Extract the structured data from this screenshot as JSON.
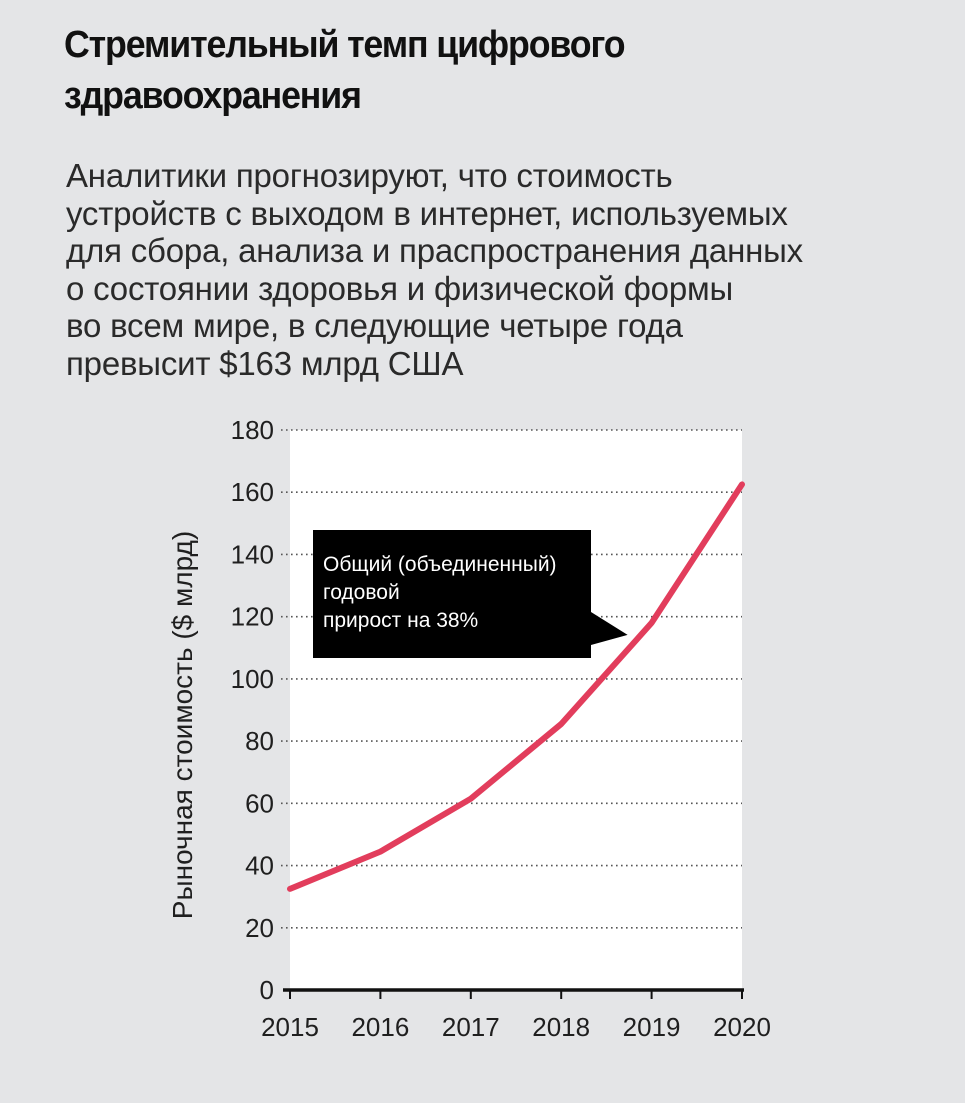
{
  "header": {
    "title_line1": "Стремительный темп цифрового",
    "title_line2": "здравоохранения",
    "subtitle_lines": [
      "Аналитики прогнозируют, что стоимость",
      "устройств с выходом в интернет, используемых",
      "для сбора, анализа и праспространения данных",
      "о состоянии здоровья и физической формы",
      "во всем мире, в следующие четыре года",
      "превысит $163 млрд США"
    ]
  },
  "colors": {
    "background": "#e4e5e7",
    "plot_background": "#ffffff",
    "line": "#e23d5c",
    "callout": "#000000",
    "gridline": "#555555"
  },
  "chart_data": {
    "type": "line",
    "x": [
      2015,
      2016,
      2017,
      2018,
      2019,
      2020
    ],
    "series": [
      {
        "values": [
          32.5,
          44.5,
          61.5,
          85.5,
          118,
          162.5
        ]
      }
    ],
    "ylabel": "Рыночная стоимость ($ млрд)",
    "xlabel": "",
    "ylim": [
      0,
      180
    ],
    "yticks": [
      0,
      20,
      40,
      60,
      80,
      100,
      120,
      140,
      160,
      180
    ],
    "xticks": [
      "2015",
      "2016",
      "2017",
      "2018",
      "2019",
      "2020"
    ],
    "grid": "horizontal dotted",
    "annotation": {
      "lines": [
        "Общий (объединенный)",
        "годовой",
        "прирост на 38%"
      ],
      "points_to_x": 2019
    }
  }
}
